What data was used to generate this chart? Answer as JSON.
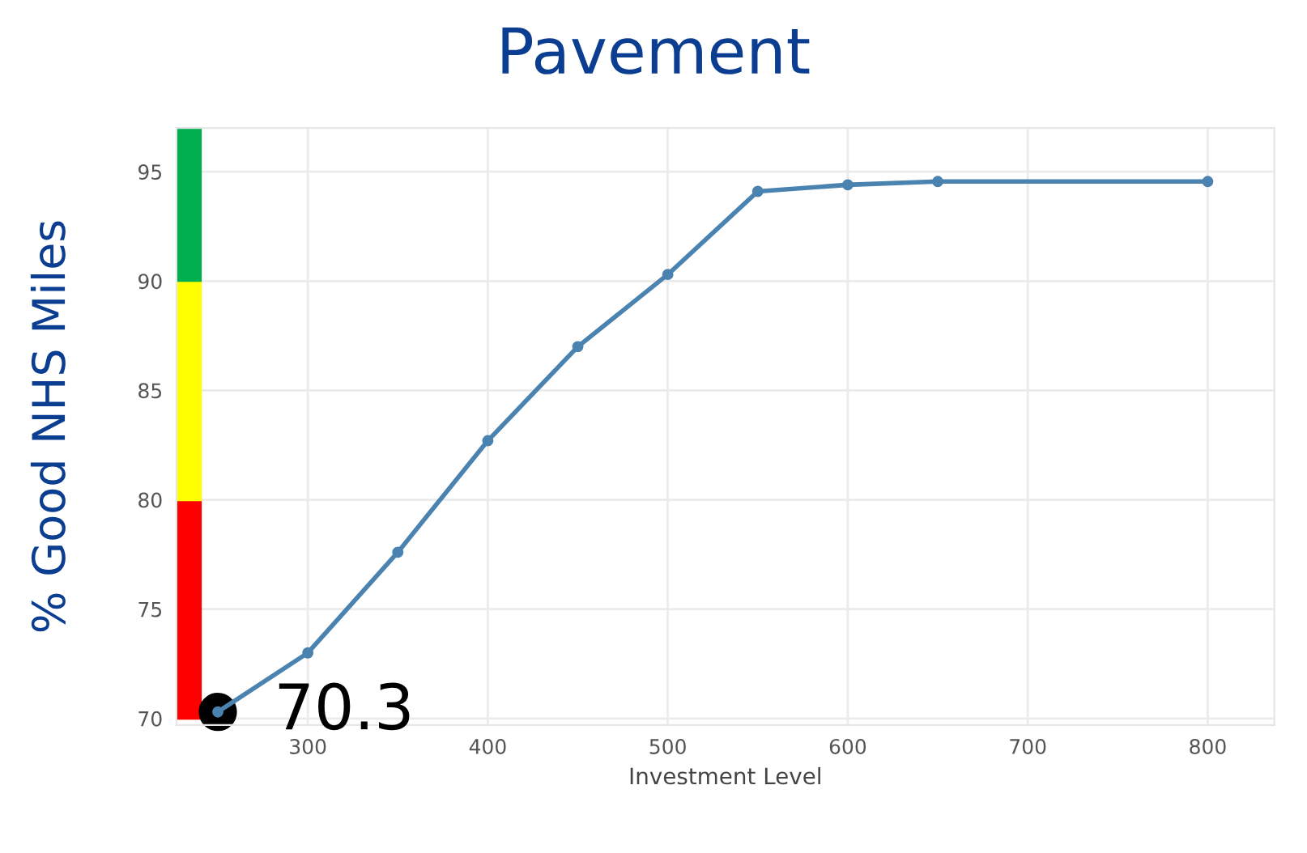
{
  "chart_data": {
    "type": "line",
    "title": "Pavement",
    "xlabel": "Investment Level",
    "ylabel": "% Good NHS Miles",
    "x": [
      250,
      300,
      350,
      400,
      450,
      500,
      550,
      600,
      650,
      800
    ],
    "series": [
      {
        "color": "#4a82b0",
        "values": [
          70.3,
          73.0,
          77.6,
          82.7,
          87.0,
          90.3,
          94.1,
          94.4,
          94.55,
          94.55
        ]
      }
    ],
    "marker": "circle",
    "xlim": [
      227,
      837
    ],
    "ylim": [
      69.7,
      97.0
    ],
    "xticks": [
      300,
      400,
      500,
      600,
      700,
      800
    ],
    "yticks": [
      70,
      75,
      80,
      85,
      90,
      95
    ],
    "grid": true,
    "annotations": [
      {
        "text": "70.3",
        "x": 250,
        "y": 70.3
      }
    ]
  }
}
